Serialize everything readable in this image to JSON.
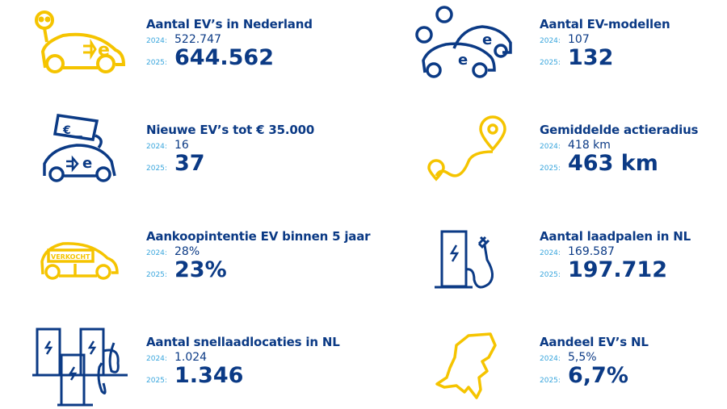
{
  "colors": {
    "navy": "#0b3a85",
    "yellow": "#f5c400",
    "light_blue": "#3aa6dd"
  },
  "year_labels": {
    "prev": "2024:",
    "curr": "2025:"
  },
  "items": [
    {
      "title": "Aantal EV’s in Nederland",
      "v2024": "522.747",
      "v2025": "644.562",
      "icon": "ev-car-plug-icon"
    },
    {
      "title": "Aantal EV-modellen",
      "v2024": "107",
      "v2025": "132",
      "icon": "ev-cars-models-icon"
    },
    {
      "title": "Nieuwe EV’s tot € 35.000",
      "v2024": "16",
      "v2025": "37",
      "icon": "ev-car-price-tag-icon"
    },
    {
      "title": "Gemiddelde actieradius",
      "v2024": "418 km",
      "v2025": "463 km",
      "icon": "route-pin-icon"
    },
    {
      "title": "Aankoopintentie EV binnen 5 jaar",
      "v2024": "28%",
      "v2025": "23%",
      "icon": "car-sold-icon",
      "sign": "VERKOCHT"
    },
    {
      "title": "Aantal laadpalen in NL",
      "v2024": "169.587",
      "v2025": "197.712",
      "icon": "charging-station-icon"
    },
    {
      "title": "Aantal snellaadlocaties in NL",
      "v2024": "1.024",
      "v2025": "1.346",
      "icon": "fast-chargers-icon"
    },
    {
      "title": "Aandeel EV’s NL",
      "v2024": "5,5%",
      "v2025": "6,7%",
      "icon": "netherlands-map-icon"
    }
  ]
}
